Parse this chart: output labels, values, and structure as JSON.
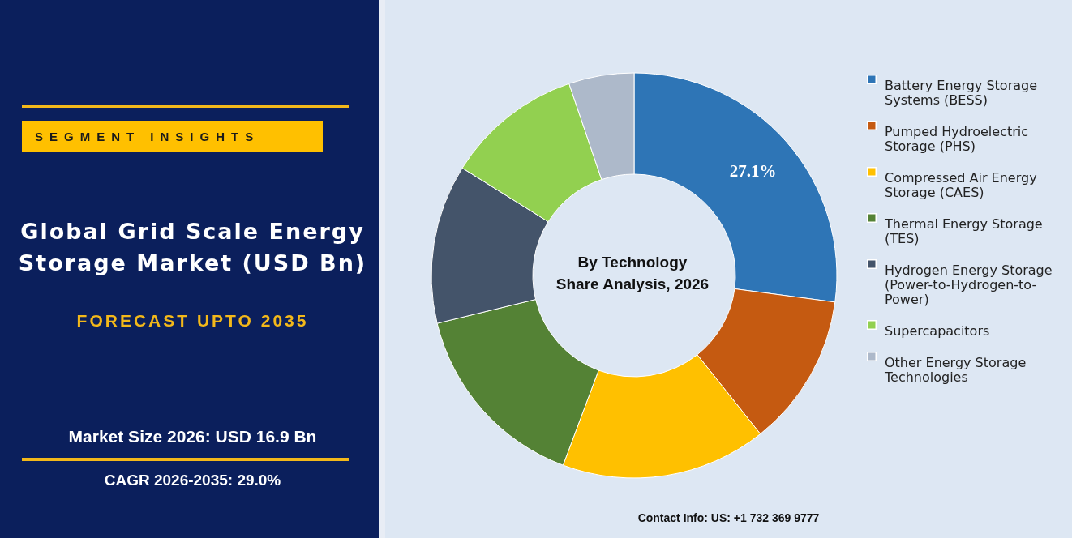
{
  "chart_data": {
    "type": "donut",
    "title": "Global Grid Scale Energy Storage Market (USD Bn)",
    "subtitle": "FORECAST UPTO 2035",
    "categories": [
      "Battery Energy Storage Systems (BESS)",
      "Pumped Hydroelectric Storage (PHS)",
      "Compressed Air Energy Storage (CAES)",
      "Thermal Energy Storage (TES)",
      "Hydrogen Energy Storage (Power-to-Hydrogen-to-Power)",
      "Supercapacitors",
      "Other Energy Storage Technologies"
    ],
    "values": [
      27.1,
      12.2,
      16.4,
      15.5,
      12.7,
      10.9,
      5.2
    ],
    "colors": [
      "#2e75b6",
      "#c55a11",
      "#ffc000",
      "#548235",
      "#44546a",
      "#92d050",
      "#adb9ca"
    ],
    "value_labels": [
      "27.1%",
      null,
      null,
      null,
      null,
      null,
      null
    ],
    "legend": "right",
    "annotations": [
      "SEGMENT INSIGHTS",
      "By Technology",
      "Share Analysis, 2026",
      "Market Size 2026: USD 16.9 Bn",
      "CAGR 2026-2035: 29.0%",
      "Contact Info: US: +1 732 369 9777"
    ]
  }
}
